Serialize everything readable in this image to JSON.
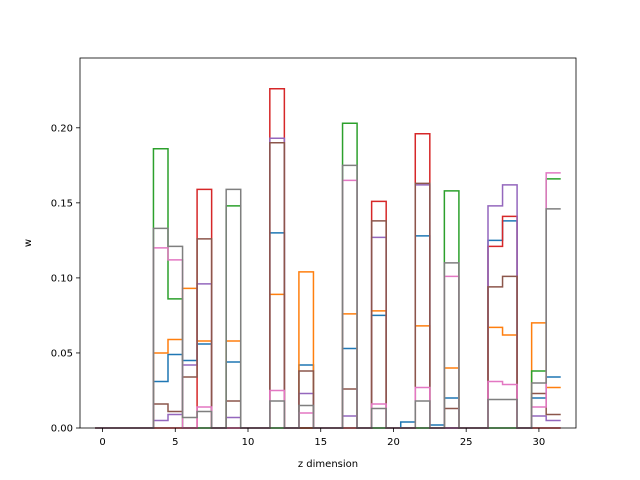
{
  "chart_data": {
    "type": "step",
    "title": "",
    "xlabel": "z dimension",
    "ylabel": "w",
    "xlim": [
      -1.55,
      32.55
    ],
    "ylim": [
      0.0,
      0.2465
    ],
    "xticks": [
      0,
      5,
      10,
      15,
      20,
      25,
      30
    ],
    "yticks": [
      0.0,
      0.05,
      0.1,
      0.15,
      0.2
    ],
    "xtick_labels": [
      "0",
      "5",
      "10",
      "15",
      "20",
      "25",
      "30"
    ],
    "ytick_labels": [
      "0.00",
      "0.05",
      "0.10",
      "0.15",
      "0.20"
    ],
    "x": [
      0,
      1,
      2,
      3,
      4,
      5,
      6,
      7,
      8,
      9,
      10,
      11,
      12,
      13,
      14,
      15,
      16,
      17,
      18,
      19,
      20,
      21,
      22,
      23,
      24,
      25,
      26,
      27,
      28,
      29,
      30,
      31
    ],
    "series": [
      {
        "color": "#1f77b4",
        "values": [
          0,
          0,
          0,
          0,
          0.031,
          0.049,
          0.045,
          0.056,
          0,
          0.044,
          0,
          0,
          0.13,
          0,
          0.042,
          0,
          0,
          0.053,
          0,
          0.075,
          0,
          0.004,
          0.128,
          0.002,
          0.02,
          0,
          0,
          0.125,
          0.138,
          0,
          0.02,
          0.034
        ]
      },
      {
        "color": "#ff7f0e",
        "values": [
          0,
          0,
          0,
          0,
          0.05,
          0.059,
          0.093,
          0.058,
          0,
          0.058,
          0,
          0,
          0.089,
          0,
          0.104,
          0,
          0,
          0.076,
          0,
          0.078,
          0,
          0,
          0.068,
          0,
          0.04,
          0,
          0,
          0.067,
          0.062,
          0,
          0.07,
          0.027
        ]
      },
      {
        "color": "#2ca02c",
        "values": [
          0,
          0,
          0,
          0,
          0.186,
          0.086,
          0,
          0,
          0,
          0.148,
          0,
          0,
          0,
          0,
          0,
          0,
          0,
          0.203,
          0,
          0,
          0,
          0,
          0,
          0,
          0.158,
          0,
          0,
          0,
          0,
          0,
          0.038,
          0.166
        ]
      },
      {
        "color": "#d62728",
        "values": [
          0,
          0,
          0,
          0,
          0,
          0,
          0,
          0.159,
          0,
          0,
          0,
          0,
          0.226,
          0,
          0,
          0,
          0,
          0,
          0,
          0.151,
          0,
          0,
          0.196,
          0,
          0,
          0,
          0,
          0.121,
          0.141,
          0,
          0,
          0
        ]
      },
      {
        "color": "#9467bd",
        "values": [
          0,
          0,
          0,
          0,
          0.005,
          0.009,
          0.042,
          0.096,
          0,
          0.007,
          0,
          0,
          0.193,
          0,
          0.023,
          0,
          0,
          0.008,
          0,
          0.127,
          0,
          0,
          0.162,
          0,
          0,
          0,
          0,
          0.148,
          0.162,
          0,
          0.008,
          0.005
        ]
      },
      {
        "color": "#8c564b",
        "values": [
          0,
          0,
          0,
          0,
          0.016,
          0.011,
          0.034,
          0.126,
          0,
          0.018,
          0,
          0,
          0.19,
          0,
          0.038,
          0,
          0,
          0.026,
          0,
          0.138,
          0,
          0,
          0.163,
          0,
          0.013,
          0,
          0,
          0.094,
          0.101,
          0,
          0.023,
          0.009
        ]
      },
      {
        "color": "#e377c2",
        "values": [
          0,
          0,
          0,
          0,
          0.12,
          0.112,
          0,
          0.014,
          0,
          0,
          0,
          0,
          0.025,
          0,
          0.01,
          0,
          0,
          0.165,
          0,
          0.016,
          0,
          0,
          0.027,
          0,
          0.101,
          0,
          0,
          0.031,
          0.029,
          0,
          0.014,
          0.17
        ]
      },
      {
        "color": "#7f7f7f",
        "values": [
          0,
          0,
          0,
          0,
          0.133,
          0.121,
          0.007,
          0.011,
          0,
          0.159,
          0,
          0,
          0.018,
          0,
          0.015,
          0,
          0,
          0.175,
          0,
          0.013,
          0,
          0,
          0.018,
          0,
          0.11,
          0,
          0,
          0.019,
          0.019,
          0,
          0.03,
          0.146
        ]
      }
    ]
  }
}
